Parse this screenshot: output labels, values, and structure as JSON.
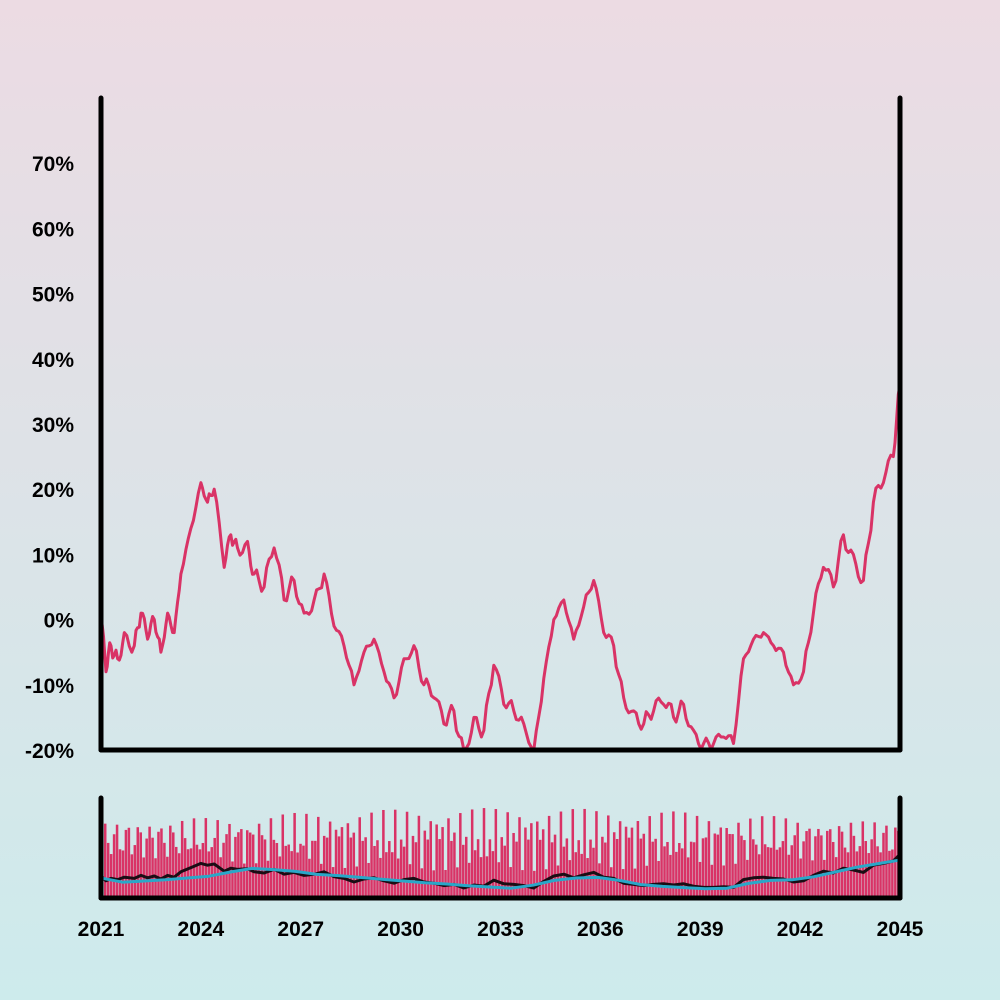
{
  "theme": {
    "line_color": "#d93366",
    "volume_color": "#d93366",
    "ma_dark_color": "#1a0d14",
    "ma_light_color": "#2aa7c8",
    "axis_color": "#000000"
  },
  "chart_data": [
    {
      "type": "line",
      "title": "",
      "xlabel": "",
      "ylabel": "",
      "xlim": [
        2021,
        2045
      ],
      "ylim": [
        -20,
        80
      ],
      "y_unit": "%",
      "grid": false,
      "legend": "none",
      "ytick_labels": [
        "-20%",
        "-10%",
        "0%",
        "10%",
        "20%",
        "30%",
        "40%",
        "50%",
        "60%",
        "70%"
      ],
      "ytick_values": [
        -20,
        -10,
        0,
        10,
        20,
        30,
        40,
        50,
        60,
        70
      ],
      "series": [
        {
          "x": [
            2021.0,
            2021.15,
            2021.3,
            2021.5,
            2021.7,
            2022.0,
            2022.2,
            2022.4,
            2022.6,
            2022.8,
            2023.0,
            2023.2,
            2023.4,
            2023.7,
            2024.0,
            2024.2,
            2024.4,
            2024.7,
            2024.9,
            2025.1,
            2025.4,
            2025.6,
            2025.9,
            2026.2,
            2026.5,
            2026.8,
            2027.1,
            2027.4,
            2027.7,
            2028.0,
            2028.3,
            2028.6,
            2028.9,
            2029.2,
            2029.5,
            2029.8,
            2030.1,
            2030.4,
            2030.7,
            2031.0,
            2031.3,
            2031.6,
            2031.9,
            2032.2,
            2032.5,
            2032.8,
            2033.1,
            2033.4,
            2033.7,
            2034.0,
            2034.3,
            2034.6,
            2034.9,
            2035.2,
            2035.5,
            2035.8,
            2036.1,
            2036.4,
            2036.7,
            2037.0,
            2037.3,
            2037.6,
            2037.9,
            2038.2,
            2038.5,
            2038.8,
            2039.1,
            2039.4,
            2039.7,
            2040.0,
            2040.3,
            2040.6,
            2040.9,
            2041.2,
            2041.5,
            2041.8,
            2042.1,
            2042.4,
            2042.7,
            2043.0,
            2043.3,
            2043.6,
            2043.9,
            2044.2,
            2044.5,
            2044.8,
            2045.0
          ],
          "y": [
            0,
            -8,
            -4,
            -6,
            -2,
            -4,
            1,
            -3,
            0,
            -5,
            1,
            -2,
            7,
            14,
            21,
            18,
            20,
            8,
            13,
            11,
            12,
            7,
            5,
            11,
            3,
            6,
            1,
            3,
            7,
            -1,
            -4,
            -10,
            -5,
            -3,
            -8,
            -12,
            -6,
            -4,
            -10,
            -12,
            -16,
            -14,
            -20,
            -15,
            -17,
            -7,
            -13,
            -14,
            -16,
            -20,
            -9,
            0,
            3,
            -3,
            2,
            6,
            -2,
            -4,
            -12,
            -14,
            -16,
            -14,
            -13,
            -15,
            -13,
            -17,
            -19,
            -19,
            -18,
            -19,
            -6,
            -3,
            -2,
            -4,
            -5,
            -10,
            -8,
            1,
            8,
            5,
            13,
            10,
            6,
            18,
            21,
            25,
            36
          ]
        }
      ]
    },
    {
      "type": "bar",
      "title": "",
      "xlabel": "",
      "ylabel": "",
      "xlim": [
        2021,
        2045
      ],
      "xtick_labels": [
        "2021",
        "2024",
        "2027",
        "2030",
        "2033",
        "2036",
        "2039",
        "2042",
        "2045"
      ],
      "xtick_values": [
        2021,
        2024,
        2027,
        2030,
        2033,
        2036,
        2039,
        2042,
        2045
      ],
      "volume_range": [
        0.3,
        1.0
      ],
      "moving_average_light_values": [
        0,
        -7,
        -5,
        -3,
        0,
        3,
        10,
        16,
        14,
        11,
        6,
        4,
        1,
        -2,
        -5,
        -8,
        -10,
        -13,
        -15,
        -17,
        -12,
        -4,
        0,
        1,
        -4,
        -11,
        -14,
        -16,
        -18,
        -17,
        -9,
        -4,
        -3,
        2,
        10,
        18,
        24,
        30
      ]
    }
  ]
}
